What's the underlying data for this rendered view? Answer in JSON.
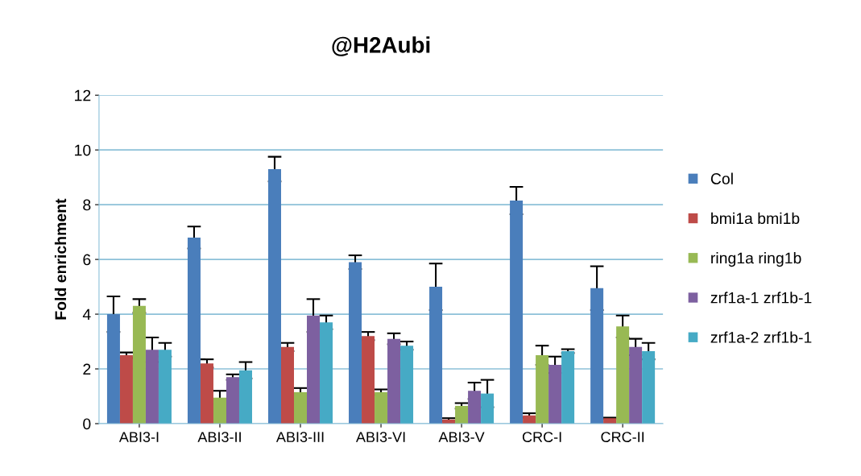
{
  "chart_data": {
    "type": "bar",
    "title": "@H2Aubi",
    "ylabel": "Fold enrichment",
    "categories": [
      "ABI3-I",
      "ABI3-II",
      "ABI3-III",
      "ABI3-VI",
      "ABI3-V",
      "CRC-I",
      "CRC-II"
    ],
    "series": [
      {
        "name": "Col",
        "color": "#4a7ebb",
        "values": [
          4.0,
          6.8,
          9.3,
          5.9,
          5.0,
          8.15,
          4.95
        ],
        "errors": [
          0.65,
          0.4,
          0.45,
          0.25,
          0.85,
          0.5,
          0.8
        ]
      },
      {
        "name": "bmi1a bmi1b",
        "color": "#be4b48",
        "values": [
          2.5,
          2.2,
          2.8,
          3.2,
          0.15,
          0.3,
          0.2
        ],
        "errors": [
          0.1,
          0.15,
          0.15,
          0.15,
          0.05,
          0.08,
          0.02
        ]
      },
      {
        "name": "ring1a ring1b",
        "color": "#98b954",
        "values": [
          4.3,
          0.95,
          1.15,
          1.15,
          0.65,
          2.5,
          3.55
        ],
        "errors": [
          0.25,
          0.25,
          0.15,
          0.1,
          0.1,
          0.35,
          0.4
        ]
      },
      {
        "name": "zrf1a-1 zrf1b-1",
        "color": "#7d60a0",
        "values": [
          2.7,
          1.7,
          3.95,
          3.1,
          1.2,
          2.15,
          2.8
        ],
        "errors": [
          0.45,
          0.1,
          0.6,
          0.2,
          0.3,
          0.3,
          0.3
        ]
      },
      {
        "name": "zrf1a-2 zrf1b-1",
        "color": "#46aac5",
        "values": [
          2.7,
          1.95,
          3.7,
          2.85,
          1.1,
          2.65,
          2.65
        ],
        "errors": [
          0.25,
          0.3,
          0.25,
          0.15,
          0.5,
          0.07,
          0.3
        ]
      }
    ],
    "ylim": [
      0,
      12
    ],
    "yticks": [
      0,
      2,
      4,
      6,
      8,
      10,
      12
    ],
    "grid": "y",
    "legend": "right"
  }
}
